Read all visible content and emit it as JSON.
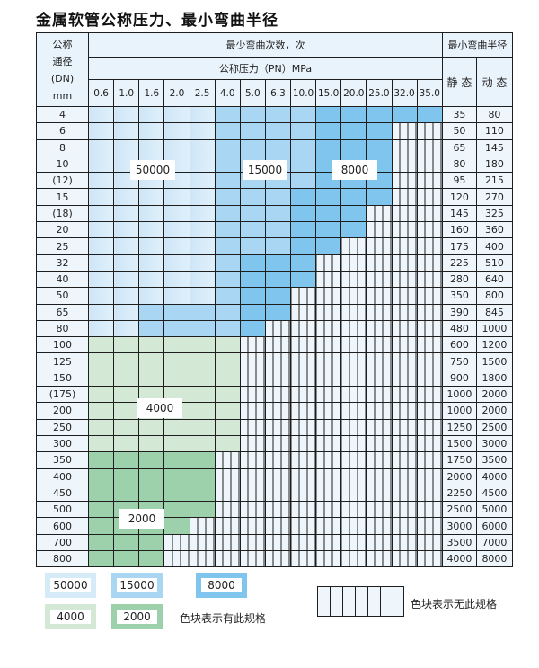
{
  "title": "金属软管公称压力、最小弯曲半径",
  "header": {
    "dn_label": [
      "公称",
      "通径",
      "(DN)",
      "mm"
    ],
    "cycles_label": "最少弯曲次数，次",
    "pressure_label": "公称压力（PN）MPa",
    "radius_label": "最小弯曲半径",
    "static_label": "静 态",
    "dynamic_label": "动 态",
    "pressures": [
      "0.6",
      "1.0",
      "1.6",
      "2.0",
      "2.5",
      "4.0",
      "5.0",
      "6.3",
      "10.0",
      "15.0",
      "20.0",
      "25.0",
      "32.0",
      "35.0"
    ]
  },
  "spec_codes": {
    "a": "50000",
    "b": "15000",
    "c": "8000",
    "d": "4000",
    "e": "2000",
    "-": "none"
  },
  "rows": [
    {
      "dn": "4",
      "cells": "aaaaabbbbccccc",
      "static": "35",
      "dynamic": "80"
    },
    {
      "dn": "6",
      "cells": "aaaaabbbbccc--",
      "static": "50",
      "dynamic": "110"
    },
    {
      "dn": "8",
      "cells": "aaaaabbbbccc--",
      "static": "65",
      "dynamic": "145"
    },
    {
      "dn": "10",
      "cells": "aaaaabbbbccc--",
      "static": "80",
      "dynamic": "180"
    },
    {
      "dn": "(12)",
      "cells": "aaaaabbbbccc--",
      "static": "95",
      "dynamic": "215"
    },
    {
      "dn": "15",
      "cells": "aaaaabbbcccc--",
      "static": "120",
      "dynamic": "270"
    },
    {
      "dn": "(18)",
      "cells": "aaaaabbbccc---",
      "static": "145",
      "dynamic": "325"
    },
    {
      "dn": "20",
      "cells": "aaaaabbbccc---",
      "static": "160",
      "dynamic": "360"
    },
    {
      "dn": "25",
      "cells": "aaaaabbbcc----",
      "static": "175",
      "dynamic": "400"
    },
    {
      "dn": "32",
      "cells": "aaaaabccc-----",
      "static": "225",
      "dynamic": "510"
    },
    {
      "dn": "40",
      "cells": "aaaaabccc-----",
      "static": "280",
      "dynamic": "640"
    },
    {
      "dn": "50",
      "cells": "aaaaabcc------",
      "static": "350",
      "dynamic": "800"
    },
    {
      "dn": "65",
      "cells": "aabbbbcc------",
      "static": "390",
      "dynamic": "845"
    },
    {
      "dn": "80",
      "cells": "aabbbbc-------",
      "static": "480",
      "dynamic": "1000"
    },
    {
      "dn": "100",
      "cells": "dddddd--------",
      "static": "600",
      "dynamic": "1200"
    },
    {
      "dn": "125",
      "cells": "dddddd--------",
      "static": "750",
      "dynamic": "1500"
    },
    {
      "dn": "150",
      "cells": "dddddd--------",
      "static": "900",
      "dynamic": "1800"
    },
    {
      "dn": "(175)",
      "cells": "dddddd--------",
      "static": "1000",
      "dynamic": "2000"
    },
    {
      "dn": "200",
      "cells": "dddddd--------",
      "static": "1000",
      "dynamic": "2000"
    },
    {
      "dn": "250",
      "cells": "dddddd--------",
      "static": "1250",
      "dynamic": "2500"
    },
    {
      "dn": "300",
      "cells": "dddddd--------",
      "static": "1500",
      "dynamic": "3000"
    },
    {
      "dn": "350",
      "cells": "eeeee---------",
      "static": "1750",
      "dynamic": "3500"
    },
    {
      "dn": "400",
      "cells": "eeeee---------",
      "static": "2000",
      "dynamic": "4000"
    },
    {
      "dn": "450",
      "cells": "eeeee---------",
      "static": "2250",
      "dynamic": "4500"
    },
    {
      "dn": "500",
      "cells": "eeeee---------",
      "static": "2500",
      "dynamic": "5000"
    },
    {
      "dn": "600",
      "cells": "eeee----------",
      "static": "3000",
      "dynamic": "6000"
    },
    {
      "dn": "700",
      "cells": "eee-----------",
      "static": "3500",
      "dynamic": "7000"
    },
    {
      "dn": "800",
      "cells": "eee-----------",
      "static": "4000",
      "dynamic": "8000"
    }
  ],
  "region_labels": {
    "a": "50000",
    "b": "15000",
    "c": "8000",
    "d": "4000",
    "e": "2000"
  },
  "legend": {
    "items": [
      "50000",
      "15000",
      "8000",
      "4000",
      "2000"
    ],
    "has_spec_text": "色块表示有此规格",
    "no_spec_text": "色块表示无此规格"
  },
  "colors": {
    "a": "#cfe6f7",
    "b": "#a9d6f3",
    "c": "#7fc5ee",
    "d": "#d3e9d6",
    "e": "#9dd1ab"
  }
}
